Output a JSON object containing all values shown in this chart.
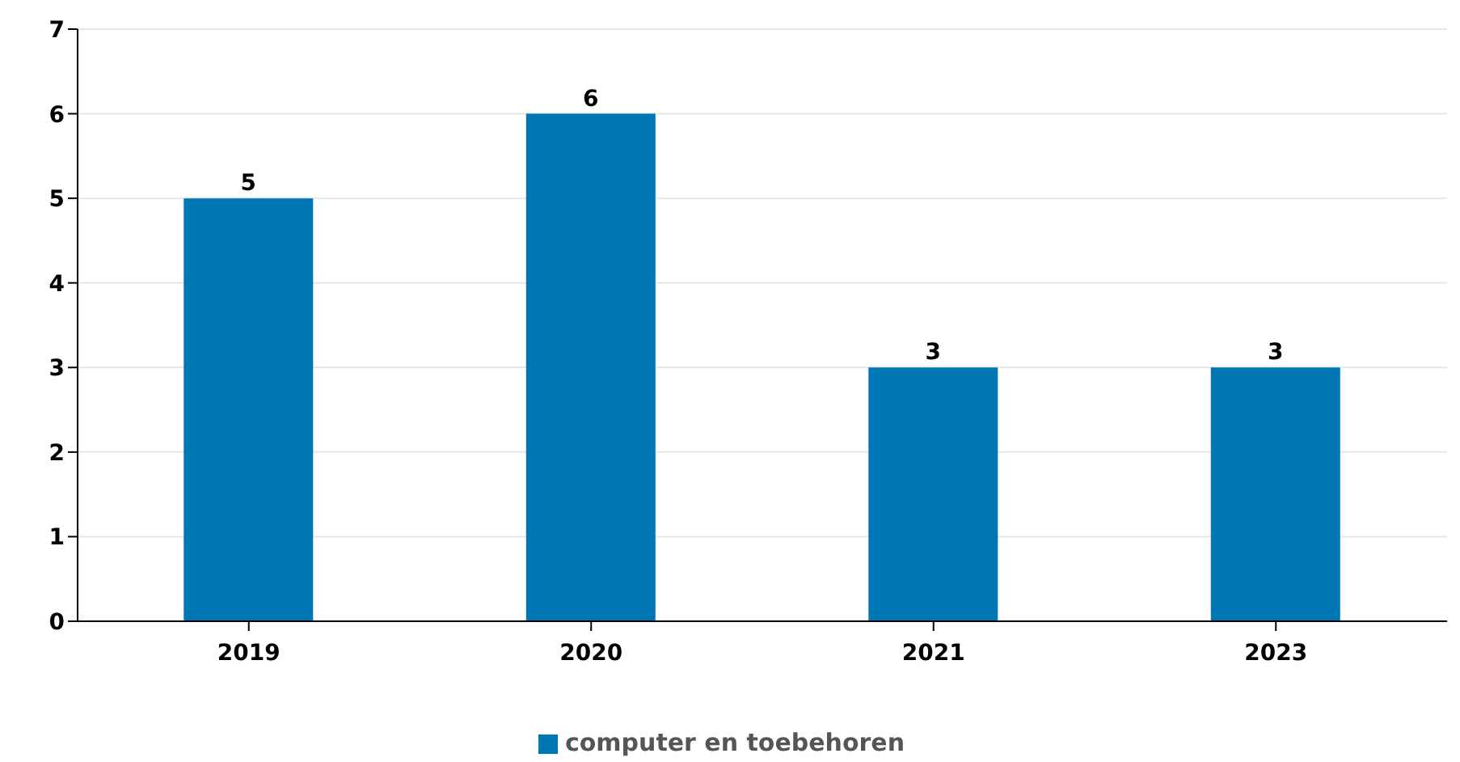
{
  "chart_data": {
    "type": "bar",
    "categories": [
      "2019",
      "2020",
      "2021",
      "2023"
    ],
    "series": [
      {
        "name": "computer en toebehoren",
        "color": "#0077b5",
        "values": [
          5,
          6,
          3,
          3
        ]
      }
    ],
    "ylim": [
      0,
      7
    ],
    "yticks": [
      0,
      1,
      2,
      3,
      4,
      5,
      6,
      7
    ],
    "grid": "y",
    "legend": "bottom",
    "data_labels": true
  }
}
